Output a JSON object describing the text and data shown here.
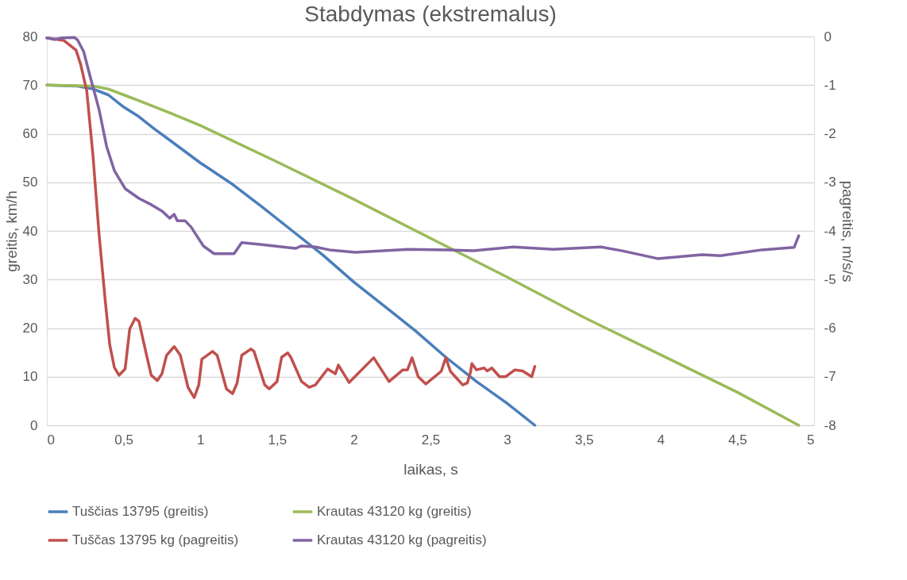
{
  "chart_data": {
    "type": "line",
    "title": "Stabdymas (ekstremalus)",
    "xlabel": "laikas, s",
    "ylabel": "greitis, km/h",
    "y2label": "pagreitis, m/s/s",
    "xlim": [
      0,
      5
    ],
    "xticks": [
      0,
      {
        "value": 0.5,
        "label": "0,5"
      },
      1,
      {
        "value": 1.5,
        "label": "1,5"
      },
      2,
      {
        "value": 2.5,
        "label": "2,5"
      },
      3,
      {
        "value": 3.5,
        "label": "3,5"
      },
      4,
      {
        "value": 4.5,
        "label": "4,5"
      },
      5
    ],
    "ylim": [
      0,
      80
    ],
    "yticks": [
      0,
      10,
      20,
      30,
      40,
      50,
      60,
      70,
      80
    ],
    "y2lim": [
      -8,
      0
    ],
    "y2ticks": [
      -8,
      -7,
      -6,
      -5,
      -4,
      -3,
      -2,
      -1,
      0
    ],
    "grid": "y",
    "legend": "bottom",
    "line_style": "solid",
    "marker": "none",
    "series": [
      {
        "name": "Tuščias 13795 (greitis)",
        "color": "#4a7ebb",
        "x": [
          0,
          0.2,
          0.3,
          0.4,
          0.5,
          0.6,
          0.7,
          0.8,
          1.0,
          1.2,
          1.4,
          1.6,
          1.8,
          2.0,
          2.2,
          2.4,
          2.6,
          2.8,
          3.0,
          3.18
        ],
        "values": [
          70,
          69.8,
          69.2,
          68,
          65.5,
          63.5,
          61,
          58.7,
          54,
          49.8,
          45,
          40,
          35,
          29.5,
          24.5,
          19.5,
          14,
          9,
          4.5,
          0
        ]
      },
      {
        "name": "Krautas 43120 kg (greitis)",
        "color": "#9bbb59",
        "x": [
          0,
          0.3,
          0.4,
          0.5,
          0.6,
          0.8,
          1.0,
          1.5,
          2,
          2.5,
          3,
          3.5,
          4,
          4.5,
          4.9
        ],
        "values": [
          70,
          69.8,
          69.2,
          68,
          66.8,
          64.3,
          61.7,
          54.2,
          46.5,
          38.5,
          30.5,
          22.2,
          14.5,
          6.8,
          0
        ]
      },
      {
        "name": "Tuščas 13795 kg (pagreitis)",
        "color": "#c0504d",
        "axis": "y2",
        "x": [
          0,
          0.11,
          0.19,
          0.22,
          0.26,
          0.3,
          0.34,
          0.38,
          0.41,
          0.44,
          0.47,
          0.51,
          0.54,
          0.575,
          0.6,
          0.65,
          0.68,
          0.72,
          0.75,
          0.78,
          0.83,
          0.87,
          0.92,
          0.96,
          0.99,
          1.01,
          1.08,
          1.11,
          1.17,
          1.21,
          1.24,
          1.27,
          1.33,
          1.35,
          1.42,
          1.45,
          1.5,
          1.53,
          1.57,
          1.59,
          1.66,
          1.71,
          1.75,
          1.83,
          1.88,
          1.9,
          1.97,
          2.13,
          2.23,
          2.32,
          2.35,
          2.38,
          2.42,
          2.47,
          2.57,
          2.6,
          2.63,
          2.71,
          2.74,
          2.76,
          2.77,
          2.8,
          2.85,
          2.87,
          2.9,
          2.95,
          2.99,
          3.05,
          3.1,
          3.16,
          3.18
        ],
        "values": [
          -0.03,
          -0.08,
          -0.28,
          -0.57,
          -1.12,
          -2.43,
          -4.06,
          -5.42,
          -6.35,
          -6.81,
          -6.97,
          -6.84,
          -6.02,
          -5.8,
          -5.86,
          -6.56,
          -6.97,
          -7.08,
          -6.94,
          -6.56,
          -6.38,
          -6.56,
          -7.22,
          -7.43,
          -7.17,
          -6.64,
          -6.48,
          -6.56,
          -7.25,
          -7.35,
          -7.13,
          -6.56,
          -6.43,
          -6.48,
          -7.17,
          -7.25,
          -7.1,
          -6.6,
          -6.51,
          -6.6,
          -7.1,
          -7.22,
          -7.17,
          -6.84,
          -6.94,
          -6.76,
          -7.12,
          -6.61,
          -7.1,
          -6.86,
          -6.86,
          -6.61,
          -7.0,
          -7.15,
          -6.89,
          -6.61,
          -6.89,
          -7.17,
          -7.13,
          -6.92,
          -6.73,
          -6.86,
          -6.82,
          -6.88,
          -6.82,
          -7.0,
          -7.0,
          -6.86,
          -6.88,
          -7.0,
          -6.79
        ]
      },
      {
        "name": "Krautas 43120 kg (pagreitis)",
        "color": "#8064a2",
        "axis": "y2",
        "x": [
          0,
          0.05,
          0.1,
          0.18,
          0.2,
          0.24,
          0.28,
          0.34,
          0.39,
          0.44,
          0.51,
          0.6,
          0.68,
          0.75,
          0.8,
          0.83,
          0.85,
          0.9,
          0.94,
          1.02,
          1.09,
          1.22,
          1.27,
          1.4,
          1.56,
          1.62,
          1.66,
          1.75,
          1.84,
          2.01,
          2.35,
          2.61,
          2.78,
          3.04,
          3.3,
          3.61,
          3.75,
          3.98,
          4.27,
          4.39,
          4.66,
          4.87,
          4.9
        ],
        "values": [
          -0.03,
          -0.06,
          -0.03,
          -0.02,
          -0.07,
          -0.31,
          -0.8,
          -1.5,
          -2.27,
          -2.76,
          -3.13,
          -3.33,
          -3.46,
          -3.59,
          -3.74,
          -3.66,
          -3.79,
          -3.79,
          -3.92,
          -4.31,
          -4.47,
          -4.47,
          -4.24,
          -4.28,
          -4.34,
          -4.36,
          -4.31,
          -4.33,
          -4.39,
          -4.44,
          -4.38,
          -4.39,
          -4.41,
          -4.33,
          -4.38,
          -4.33,
          -4.41,
          -4.57,
          -4.49,
          -4.51,
          -4.39,
          -4.34,
          -4.1
        ]
      }
    ]
  }
}
